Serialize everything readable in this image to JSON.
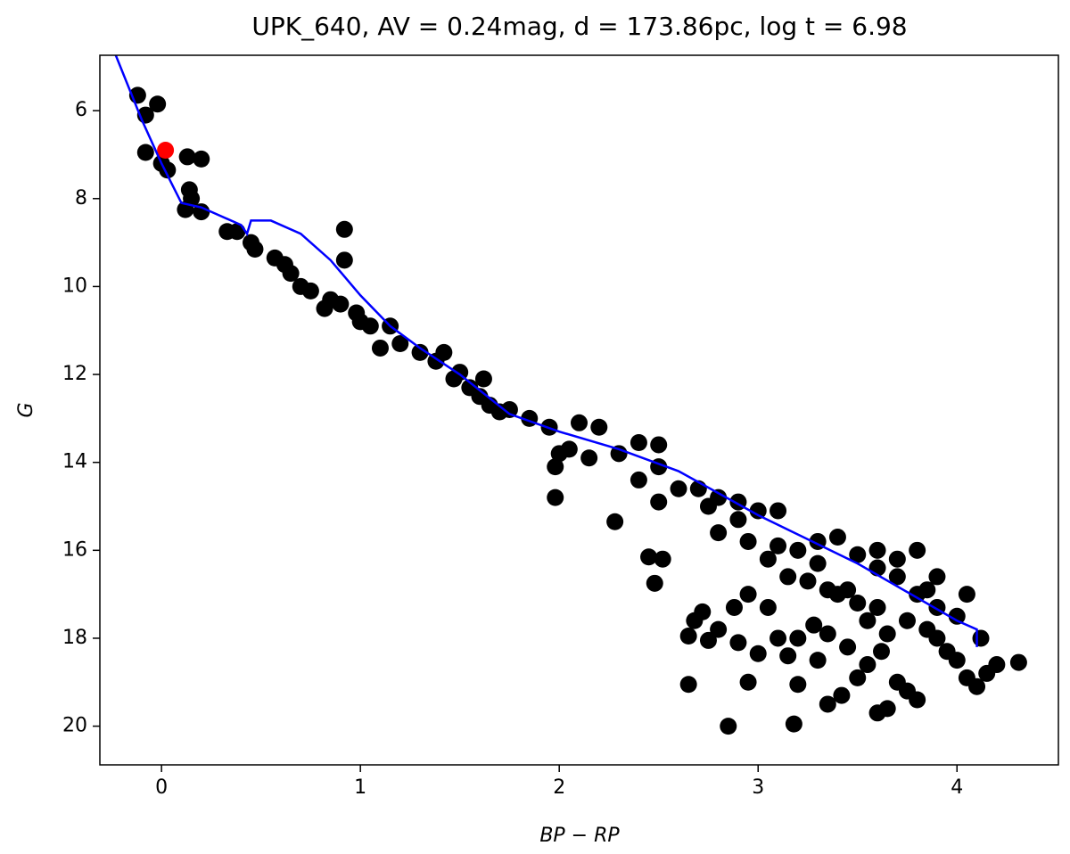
{
  "chart_data": {
    "type": "scatter",
    "title": "UPK_640, AV = 0.24mag, d = 173.86pc, log t = 6.98",
    "x_label": "BP − RP",
    "y_label": "G",
    "xlim": [
      -0.31,
      4.51
    ],
    "ylim": [
      20.88,
      4.74
    ],
    "xticks": [
      0,
      1,
      2,
      3,
      4
    ],
    "yticks": [
      6,
      8,
      10,
      12,
      14,
      16,
      18,
      20
    ],
    "series": [
      {
        "color": "#000000",
        "x": [
          -0.12,
          -0.08,
          -0.02,
          -0.08,
          0.0,
          0.03,
          0.13,
          0.2,
          0.14,
          0.15,
          0.12,
          0.2,
          0.33,
          0.38,
          0.45,
          0.47,
          0.57,
          0.62,
          0.65,
          0.7,
          0.75,
          0.85,
          0.82,
          0.9,
          0.92,
          0.92,
          0.98,
          1.0,
          1.05,
          1.1,
          1.15,
          1.2,
          1.3,
          1.38,
          1.42,
          1.47,
          1.5,
          1.55,
          1.6,
          1.62,
          1.65,
          1.7,
          1.75,
          1.85,
          1.95,
          2.1,
          2.2,
          2.0,
          1.98,
          1.98,
          2.05,
          2.15,
          2.3,
          2.4,
          2.5,
          2.5,
          2.28,
          2.4,
          2.6,
          2.7,
          2.5,
          2.75,
          2.8,
          2.9,
          2.9,
          3.0,
          3.1,
          2.8,
          2.95,
          3.1,
          3.2,
          3.3,
          3.4,
          3.5,
          3.6,
          3.7,
          3.25,
          3.4,
          3.5,
          3.6,
          3.8,
          3.9,
          3.75,
          3.85,
          3.9,
          3.95,
          4.0,
          4.05,
          4.1,
          4.15,
          4.2,
          4.31,
          4.12,
          4.0,
          2.45,
          2.52,
          2.48,
          2.65,
          2.68,
          2.72,
          2.75,
          2.8,
          2.88,
          2.95,
          3.05,
          2.9,
          3.0,
          2.95,
          2.65,
          3.1,
          3.2,
          3.15,
          3.28,
          3.35,
          3.3,
          3.45,
          3.55,
          3.62,
          3.5,
          3.2,
          3.35,
          3.42,
          3.6,
          3.65,
          3.75,
          3.8,
          3.7,
          2.85,
          3.18,
          3.3,
          3.15,
          3.05,
          3.6,
          3.7,
          3.8,
          3.9,
          3.85,
          4.05,
          3.65,
          3.55,
          3.45,
          3.35
        ],
        "values": [
          5.65,
          6.1,
          5.85,
          6.95,
          7.2,
          7.35,
          7.05,
          7.1,
          7.8,
          8.0,
          8.25,
          8.3,
          8.75,
          8.75,
          9.0,
          9.15,
          9.35,
          9.5,
          9.7,
          10.0,
          10.1,
          10.3,
          10.5,
          10.4,
          9.4,
          8.7,
          10.6,
          10.8,
          10.9,
          11.4,
          10.9,
          11.3,
          11.5,
          11.7,
          11.5,
          12.1,
          11.95,
          12.3,
          12.5,
          12.1,
          12.7,
          12.85,
          12.8,
          13.0,
          13.2,
          13.1,
          13.2,
          13.8,
          14.1,
          14.8,
          13.7,
          13.9,
          13.8,
          13.55,
          13.6,
          14.1,
          15.35,
          14.4,
          14.6,
          14.6,
          14.9,
          15.0,
          14.8,
          14.9,
          15.3,
          15.1,
          15.1,
          15.6,
          15.8,
          15.9,
          16.0,
          15.8,
          15.7,
          16.1,
          16.4,
          16.6,
          16.7,
          17.0,
          17.2,
          17.3,
          17.0,
          17.3,
          17.6,
          17.8,
          18.0,
          18.3,
          18.5,
          18.9,
          19.1,
          18.8,
          18.6,
          18.55,
          18.0,
          17.5,
          16.15,
          16.2,
          16.75,
          17.95,
          17.6,
          17.4,
          18.05,
          17.8,
          17.3,
          17.0,
          17.3,
          18.1,
          18.35,
          19.0,
          19.05,
          18.0,
          18.0,
          18.4,
          17.7,
          17.9,
          18.5,
          18.2,
          18.6,
          18.3,
          18.9,
          19.05,
          19.5,
          19.3,
          19.7,
          19.6,
          19.2,
          19.4,
          19.0,
          20.0,
          19.95,
          16.3,
          16.6,
          16.2,
          16.0,
          16.2,
          16.0,
          16.6,
          16.9,
          17.0,
          17.9,
          17.6,
          16.9,
          16.9
        ]
      },
      {
        "color": "#ff0000",
        "x": [
          0.02
        ],
        "values": [
          6.9
        ]
      }
    ],
    "isochrone": {
      "color": "#0000ff",
      "x": [
        -0.23,
        -0.1,
        0.0,
        0.1,
        0.2,
        0.4,
        0.43,
        0.45,
        0.55,
        0.7,
        0.85,
        1.0,
        1.15,
        1.3,
        1.5,
        1.75,
        2.0,
        2.3,
        2.6,
        3.0,
        3.5,
        4.0,
        4.1,
        4.1
      ],
      "values": [
        4.74,
        6.2,
        7.2,
        8.1,
        8.2,
        8.6,
        8.8,
        8.5,
        8.5,
        8.8,
        9.4,
        10.2,
        10.9,
        11.4,
        12.0,
        12.9,
        13.3,
        13.7,
        14.2,
        15.2,
        16.3,
        17.6,
        17.8,
        18.2
      ]
    }
  }
}
